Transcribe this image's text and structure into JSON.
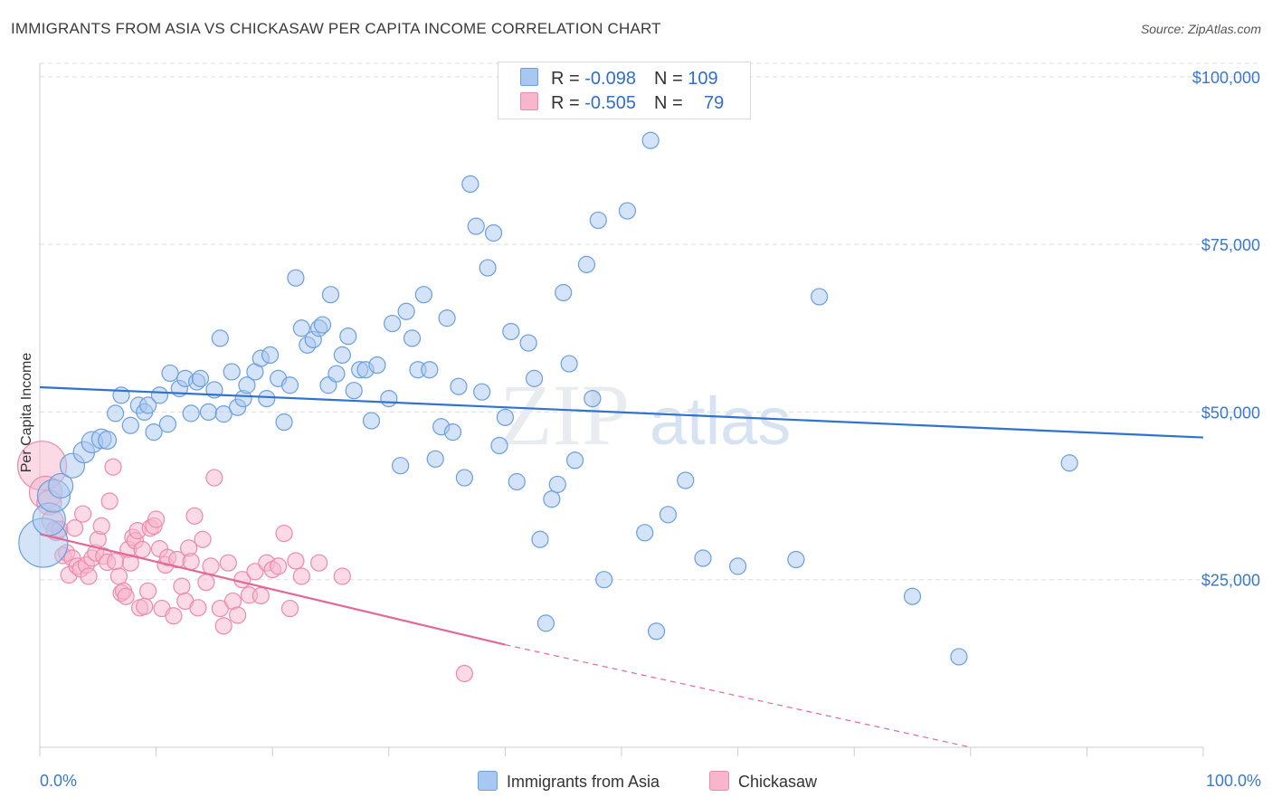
{
  "header": {
    "title": "IMMIGRANTS FROM ASIA VS CHICKASAW PER CAPITA INCOME CORRELATION CHART",
    "source": "Source: ZipAtlas.com"
  },
  "watermark": {
    "zip": "ZIP",
    "atlas": "atlas"
  },
  "legend": {
    "rows": [
      {
        "r_label": "R = ",
        "r_value": "-0.098",
        "n_label": "N = ",
        "n_value": "109"
      },
      {
        "r_label": "R = ",
        "r_value": "-0.505",
        "n_label": "N = ",
        "n_value": "79"
      }
    ]
  },
  "bottom_legend": {
    "items": [
      "Immigrants from Asia",
      "Chickasaw"
    ]
  },
  "colors": {
    "asia_fill": "#a9c8f0",
    "asia_stroke": "#6a9fe0",
    "asia_line": "#2f72d0",
    "chick_fill": "#f7b6cb",
    "chick_stroke": "#ec8aab",
    "chick_line": "#e4679a",
    "tick_text": "#3a78c9",
    "grid": "#dddddd"
  },
  "chart_data": {
    "type": "scatter",
    "title": "IMMIGRANTS FROM ASIA VS CHICKASAW PER CAPITA INCOME CORRELATION CHART",
    "xlabel": "",
    "ylabel": "Per Capita Income",
    "xlim": [
      0,
      100
    ],
    "ylim": [
      0,
      102000
    ],
    "x_tick_labels": [
      "0.0%",
      "100.0%"
    ],
    "y_ticks": [
      {
        "value": 25000,
        "label": "$25,000"
      },
      {
        "value": 50000,
        "label": "$50,000"
      },
      {
        "value": 75000,
        "label": "$75,000"
      },
      {
        "value": 100000,
        "label": "$100,000"
      }
    ],
    "grid": "horizontal dashed",
    "series": [
      {
        "name": "Immigrants from Asia",
        "R": -0.098,
        "N": 109,
        "trend": {
          "x": [
            0,
            100
          ],
          "y": [
            53700,
            46200
          ],
          "dashed_after": null
        },
        "points": [
          [
            0.3,
            30500,
            3
          ],
          [
            0.8,
            34000,
            2
          ],
          [
            1.2,
            37500,
            2
          ],
          [
            1.8,
            39000,
            1.5
          ],
          [
            2.8,
            42000,
            1.5
          ],
          [
            3.8,
            44000,
            1.3
          ],
          [
            4.5,
            45500,
            1.3
          ],
          [
            5.3,
            46000,
            1.2
          ],
          [
            5.8,
            45800,
            1.1
          ],
          [
            6.5,
            49800,
            1
          ],
          [
            7,
            52500,
            1
          ],
          [
            7.8,
            48000,
            1
          ],
          [
            8.5,
            51000,
            1
          ],
          [
            9,
            50000,
            1
          ],
          [
            9.3,
            51000,
            1
          ],
          [
            9.8,
            47000,
            1
          ],
          [
            10.3,
            52500,
            1
          ],
          [
            11,
            48200,
            1
          ],
          [
            11.2,
            55800,
            1
          ],
          [
            12,
            53500,
            1
          ],
          [
            12.5,
            55000,
            1
          ],
          [
            13,
            49800,
            1
          ],
          [
            13.5,
            54500,
            1
          ],
          [
            13.8,
            55000,
            1
          ],
          [
            14.5,
            50000,
            1
          ],
          [
            15,
            53300,
            1
          ],
          [
            15.5,
            61000,
            1
          ],
          [
            15.8,
            49700,
            1
          ],
          [
            16.5,
            56000,
            1
          ],
          [
            17,
            50700,
            1
          ],
          [
            17.5,
            52000,
            1
          ],
          [
            17.8,
            54000,
            1
          ],
          [
            18.5,
            56000,
            1
          ],
          [
            19,
            58000,
            1
          ],
          [
            19.5,
            52000,
            1
          ],
          [
            19.8,
            58500,
            1
          ],
          [
            20.5,
            55000,
            1
          ],
          [
            21,
            48500,
            1
          ],
          [
            21.5,
            54000,
            1
          ],
          [
            22,
            70000,
            1
          ],
          [
            22.5,
            62500,
            1
          ],
          [
            23,
            60000,
            1
          ],
          [
            23.5,
            60800,
            1
          ],
          [
            24,
            62500,
            1
          ],
          [
            24.3,
            63000,
            1
          ],
          [
            24.8,
            54000,
            1
          ],
          [
            25,
            67500,
            1
          ],
          [
            25.5,
            55700,
            1
          ],
          [
            26,
            58500,
            1
          ],
          [
            26.5,
            61300,
            1
          ],
          [
            27,
            53200,
            1
          ],
          [
            27.5,
            56300,
            1
          ],
          [
            28,
            56300,
            1
          ],
          [
            28.5,
            48700,
            1
          ],
          [
            29,
            57000,
            1
          ],
          [
            30,
            52000,
            1
          ],
          [
            30.3,
            63200,
            1
          ],
          [
            31,
            42000,
            1
          ],
          [
            31.5,
            65000,
            1
          ],
          [
            32,
            61000,
            1
          ],
          [
            32.5,
            56300,
            1
          ],
          [
            33,
            67500,
            1
          ],
          [
            33.5,
            56300,
            1
          ],
          [
            34,
            43000,
            1
          ],
          [
            34.5,
            47800,
            1
          ],
          [
            35,
            64000,
            1
          ],
          [
            35.5,
            47000,
            1
          ],
          [
            36,
            53800,
            1
          ],
          [
            36.5,
            40200,
            1
          ],
          [
            37,
            84000,
            1
          ],
          [
            37.5,
            77700,
            1
          ],
          [
            38,
            53000,
            1
          ],
          [
            38.5,
            71500,
            1
          ],
          [
            39,
            76700,
            1
          ],
          [
            39.5,
            45000,
            1
          ],
          [
            40,
            49200,
            1
          ],
          [
            40.5,
            62000,
            1
          ],
          [
            41,
            39600,
            1
          ],
          [
            42,
            60300,
            1
          ],
          [
            42.5,
            55000,
            1
          ],
          [
            43,
            31000,
            1
          ],
          [
            43.5,
            18500,
            1
          ],
          [
            44,
            37000,
            1
          ],
          [
            44.5,
            39200,
            1
          ],
          [
            45,
            67800,
            1
          ],
          [
            45.5,
            57200,
            1
          ],
          [
            46,
            42800,
            1
          ],
          [
            47,
            72000,
            1
          ],
          [
            47.5,
            52000,
            1
          ],
          [
            48,
            78600,
            1
          ],
          [
            48.5,
            25000,
            1
          ],
          [
            50.5,
            80000,
            1
          ],
          [
            52,
            32000,
            1
          ],
          [
            52.5,
            90500,
            1
          ],
          [
            53,
            17300,
            1
          ],
          [
            54,
            34700,
            1
          ],
          [
            55.5,
            39800,
            1
          ],
          [
            57,
            28200,
            1
          ],
          [
            60,
            27000,
            1
          ],
          [
            65,
            28000,
            1
          ],
          [
            67,
            67200,
            1
          ],
          [
            75,
            22500,
            1
          ],
          [
            79,
            13500,
            1
          ],
          [
            88.5,
            42400,
            1
          ]
        ]
      },
      {
        "name": "Chickasaw",
        "R": -0.505,
        "N": 79,
        "trend": {
          "x": [
            0,
            40,
            80
          ],
          "y": [
            31800,
            15300,
            0
          ],
          "dashed_after": 40
        },
        "points": [
          [
            0.2,
            42000,
            3
          ],
          [
            0.5,
            38000,
            2
          ],
          [
            0.8,
            36500,
            1.5
          ],
          [
            1.1,
            33800,
            1.3
          ],
          [
            1.4,
            32300,
            1.2
          ],
          [
            1.7,
            32500,
            1
          ],
          [
            2,
            28600,
            1
          ],
          [
            2.3,
            29000,
            1
          ],
          [
            2.5,
            25700,
            1
          ],
          [
            2.8,
            28200,
            1
          ],
          [
            3,
            32700,
            1
          ],
          [
            3.2,
            27000,
            1
          ],
          [
            3.5,
            26600,
            1
          ],
          [
            3.7,
            34800,
            1
          ],
          [
            4,
            27200,
            1
          ],
          [
            4.2,
            25500,
            1
          ],
          [
            4.5,
            28200,
            1
          ],
          [
            4.8,
            29000,
            1
          ],
          [
            5,
            31000,
            1
          ],
          [
            5.3,
            33000,
            1
          ],
          [
            5.5,
            28500,
            1
          ],
          [
            5.8,
            27600,
            1
          ],
          [
            6,
            36700,
            1
          ],
          [
            6.3,
            41800,
            1
          ],
          [
            6.5,
            27700,
            1
          ],
          [
            6.8,
            25500,
            1
          ],
          [
            7,
            23000,
            1
          ],
          [
            7.2,
            23300,
            1
          ],
          [
            7.4,
            22500,
            1
          ],
          [
            7.6,
            29500,
            1
          ],
          [
            7.8,
            27500,
            1
          ],
          [
            8,
            31300,
            1
          ],
          [
            8.2,
            30800,
            1
          ],
          [
            8.4,
            32300,
            1
          ],
          [
            8.6,
            20800,
            1
          ],
          [
            8.8,
            29500,
            1
          ],
          [
            9,
            21000,
            1
          ],
          [
            9.3,
            23300,
            1
          ],
          [
            9.5,
            32700,
            1
          ],
          [
            9.8,
            33000,
            1
          ],
          [
            10,
            34000,
            1
          ],
          [
            10.3,
            29600,
            1
          ],
          [
            10.5,
            20700,
            1
          ],
          [
            10.8,
            27200,
            1
          ],
          [
            11,
            28300,
            1
          ],
          [
            11.5,
            19600,
            1
          ],
          [
            11.8,
            28000,
            1
          ],
          [
            12.2,
            24000,
            1
          ],
          [
            12.5,
            21800,
            1
          ],
          [
            12.8,
            29700,
            1
          ],
          [
            13,
            27700,
            1
          ],
          [
            13.3,
            34500,
            1
          ],
          [
            13.6,
            20800,
            1
          ],
          [
            14,
            31000,
            1
          ],
          [
            14.3,
            24600,
            1
          ],
          [
            14.7,
            27000,
            1
          ],
          [
            15,
            40200,
            1
          ],
          [
            15.5,
            20700,
            1
          ],
          [
            15.8,
            18100,
            1
          ],
          [
            16.2,
            27500,
            1
          ],
          [
            16.6,
            21800,
            1
          ],
          [
            17,
            19700,
            1
          ],
          [
            17.4,
            25000,
            1
          ],
          [
            18,
            22700,
            1
          ],
          [
            18.5,
            26200,
            1
          ],
          [
            19,
            22600,
            1
          ],
          [
            19.5,
            27500,
            1
          ],
          [
            20,
            26500,
            1
          ],
          [
            20.5,
            27000,
            1
          ],
          [
            21,
            31900,
            1
          ],
          [
            21.5,
            20700,
            1
          ],
          [
            22,
            27800,
            1
          ],
          [
            22.5,
            25500,
            1
          ],
          [
            24,
            27500,
            1
          ],
          [
            26,
            25500,
            1
          ],
          [
            36.5,
            11000,
            1
          ]
        ]
      }
    ]
  }
}
